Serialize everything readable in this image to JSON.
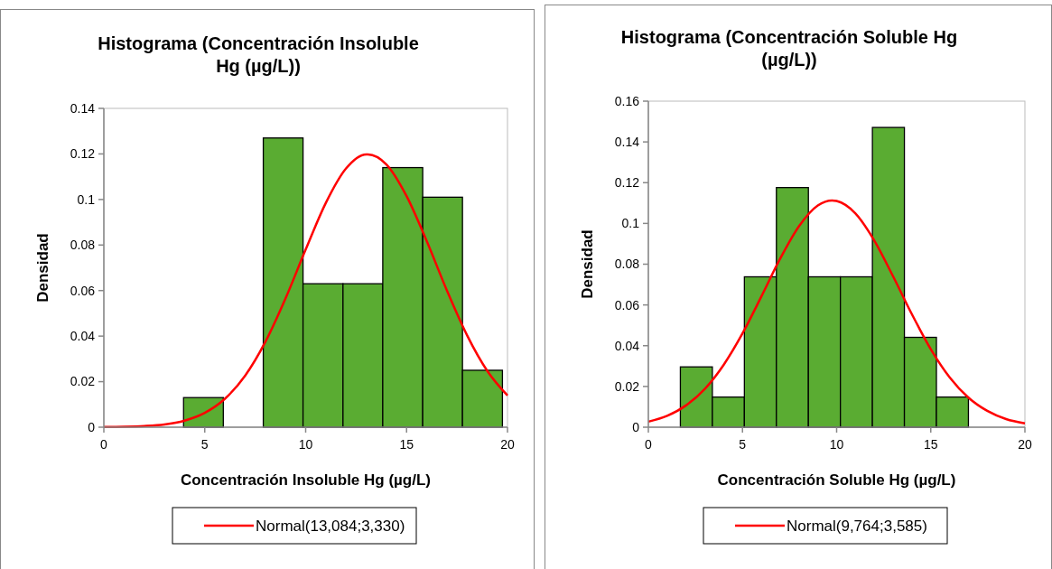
{
  "chart_data": [
    {
      "type": "histogram",
      "title": "Histograma  (Concentración  Insoluble Hg (µg/L))",
      "xlabel": "Concentración  Insoluble Hg (µg/L)",
      "ylabel": "Densidad",
      "bins": [
        0,
        1.97,
        3.95,
        5.92,
        7.9,
        9.87,
        11.85,
        13.82,
        15.8,
        17.77,
        19.75
      ],
      "values": [
        0,
        0,
        0.013,
        0,
        0.127,
        0.063,
        0.063,
        0.114,
        0.101,
        0.025
      ],
      "color": "#5aac32",
      "xlim": [
        0,
        20
      ],
      "xticks": [
        0,
        5,
        10,
        15,
        20
      ],
      "ylim": [
        0,
        0.14
      ],
      "yticks": [
        0,
        0.02,
        0.04,
        0.06,
        0.08,
        0.1,
        0.12,
        0.14
      ],
      "grid": false,
      "legend": "bottom",
      "series": [
        {
          "type": "line",
          "name": "Normal(13,084;3,330)",
          "color": "#ff0000",
          "x": [
            0,
            1,
            2,
            3,
            4,
            5,
            6,
            7,
            8,
            9,
            10,
            11,
            12,
            13,
            13.084,
            14,
            15,
            16,
            17,
            18,
            19,
            20
          ],
          "values": [
            0.0001,
            0.0002,
            0.0005,
            0.0012,
            0.0029,
            0.0063,
            0.0125,
            0.0226,
            0.0374,
            0.0565,
            0.078,
            0.0985,
            0.1136,
            0.1198,
            0.1198,
            0.1154,
            0.1015,
            0.0817,
            0.06,
            0.0403,
            0.0247,
            0.0139
          ]
        }
      ]
    },
    {
      "type": "histogram",
      "title": "Histograma  (Concentración  Soluble Hg (µg/L))",
      "xlabel": "Concentración  Soluble Hg (µg/L)",
      "ylabel": "Densidad",
      "bins": [
        0,
        1.7,
        3.4,
        5.1,
        6.8,
        8.5,
        10.2,
        11.9,
        13.6,
        15.3,
        17
      ],
      "values": [
        0,
        0.0296,
        0.0148,
        0.0738,
        0.1176,
        0.0738,
        0.0738,
        0.1471,
        0.0441,
        0.0148
      ],
      "color": "#5aac32",
      "xlim": [
        0,
        20
      ],
      "xticks": [
        0,
        5,
        10,
        15,
        20
      ],
      "ylim": [
        0,
        0.16
      ],
      "yticks": [
        0,
        0.02,
        0.04,
        0.06,
        0.08,
        0.1,
        0.12,
        0.14,
        0.16
      ],
      "grid": false,
      "legend": "bottom",
      "series": [
        {
          "type": "line",
          "name": "Normal(9,764;3,585)",
          "color": "#ff0000",
          "x": [
            0,
            1,
            2,
            3,
            4,
            5,
            6,
            7,
            8,
            9,
            9.764,
            10,
            11,
            12,
            13,
            14,
            15,
            16,
            17,
            18,
            19,
            20
          ],
          "values": [
            0.0027,
            0.0056,
            0.0107,
            0.0188,
            0.0306,
            0.046,
            0.0641,
            0.0827,
            0.0986,
            0.1088,
            0.1113,
            0.111,
            0.1049,
            0.0916,
            0.074,
            0.0554,
            0.0383,
            0.0245,
            0.0145,
            0.008,
            0.004,
            0.0019
          ]
        }
      ]
    }
  ]
}
